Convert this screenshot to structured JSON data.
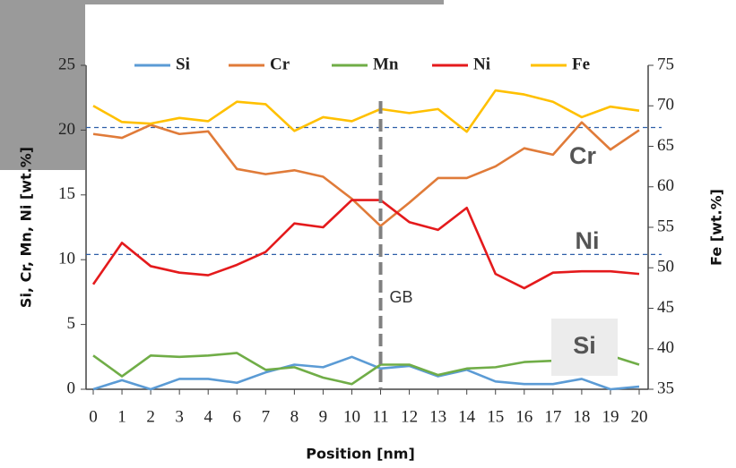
{
  "chart_data": {
    "type": "line",
    "xlabel": "Position [nm]",
    "ylabel": "Si, Cr, Mn, Ni [wt.%]",
    "y2label": "Fe [wt.%]",
    "categories": [
      "0",
      "1",
      "2",
      "3",
      "4",
      "6",
      "7",
      "8",
      "9",
      "10",
      "11",
      "12",
      "13",
      "14",
      "15",
      "16",
      "17",
      "18",
      "19",
      "20"
    ],
    "ylim": [
      0,
      25
    ],
    "yticks": [
      0,
      5,
      10,
      15,
      20,
      25
    ],
    "y2lim": [
      35,
      75
    ],
    "y2ticks": [
      35,
      40,
      45,
      50,
      55,
      60,
      65,
      70,
      75
    ],
    "legend": "top",
    "series": [
      {
        "name": "Si",
        "color": "#5b9bd5",
        "values": [
          0,
          0.7,
          0,
          0.8,
          0.8,
          0.5,
          1.3,
          1.9,
          1.7,
          2.5,
          1.6,
          1.8,
          1.0,
          1.5,
          0.6,
          0.4,
          0.4,
          0.8,
          0,
          0.2
        ]
      },
      {
        "name": "Cr",
        "color": "#e07b39",
        "values": [
          19.7,
          19.4,
          20.4,
          19.7,
          19.9,
          17.0,
          16.6,
          16.9,
          16.4,
          14.7,
          12.6,
          14.4,
          16.3,
          16.3,
          17.2,
          18.6,
          18.1,
          20.6,
          18.5,
          20.0
        ]
      },
      {
        "name": "Mn",
        "color": "#70ad47",
        "values": [
          2.6,
          1.0,
          2.6,
          2.5,
          2.6,
          2.8,
          1.5,
          1.7,
          0.9,
          0.4,
          1.9,
          1.9,
          1.1,
          1.6,
          1.7,
          2.1,
          2.2,
          2.3,
          2.6,
          1.9
        ]
      },
      {
        "name": "Ni",
        "color": "#e41a1c",
        "values": [
          8.1,
          11.3,
          9.5,
          9.0,
          8.8,
          9.6,
          10.6,
          12.8,
          12.5,
          14.6,
          14.6,
          12.9,
          12.3,
          14.0,
          8.9,
          7.8,
          9.0,
          9.1,
          9.1,
          8.9
        ]
      },
      {
        "name": "Fe",
        "color": "#ffc000",
        "axis": "y2",
        "values": [
          70.0,
          68.0,
          67.8,
          68.5,
          68.1,
          70.5,
          70.2,
          66.9,
          68.6,
          68.1,
          69.6,
          69.1,
          69.6,
          66.8,
          71.9,
          71.4,
          70.5,
          68.6,
          69.9,
          69.4
        ]
      }
    ],
    "reference_lines": [
      {
        "axis": "y",
        "value": 20.2,
        "color": "#2e5fa8"
      },
      {
        "axis": "y",
        "value": 10.4,
        "color": "#2e5fa8"
      }
    ],
    "vertical_line": {
      "x": "11",
      "label": "GB",
      "color": "#808080"
    },
    "annotations": [
      "Cr",
      "Ni",
      "Si"
    ]
  }
}
